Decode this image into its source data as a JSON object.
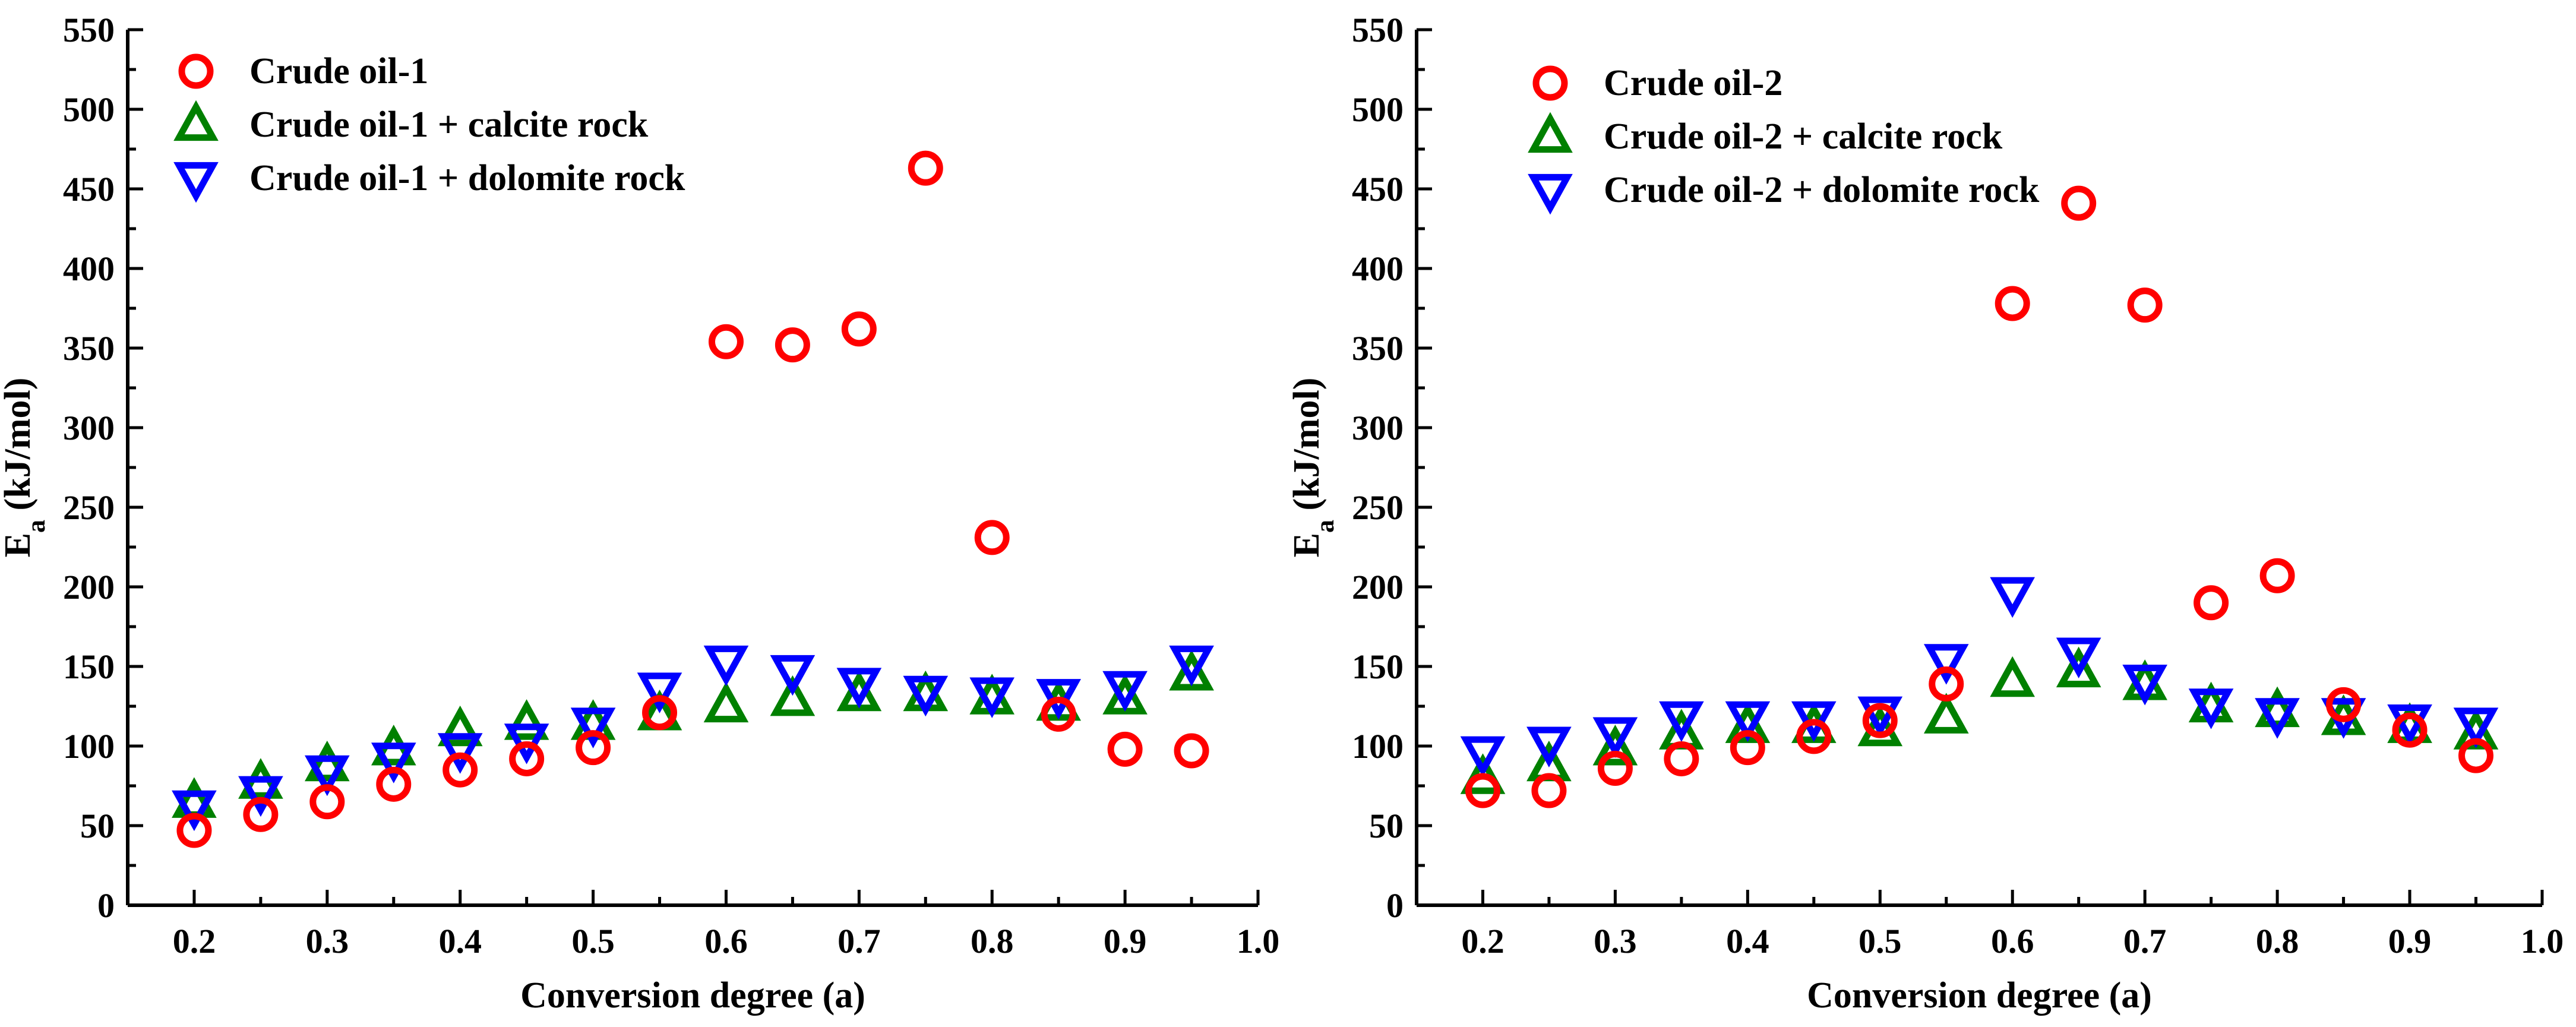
{
  "chart_data": [
    {
      "type": "scatter",
      "title": "",
      "xlabel": "Conversion degree (a)",
      "ylabel": "E",
      "ylabel_sub": "a",
      "ylabel_unit": " (kJ/mol)",
      "xlim": [
        0.15,
        1.0
      ],
      "ylim": [
        0,
        550
      ],
      "xticks": [
        0.2,
        0.3,
        0.4,
        0.5,
        0.6,
        0.7,
        0.8,
        0.9,
        1.0
      ],
      "xtick_labels": [
        "0.2",
        "0.3",
        "0.4",
        "0.5",
        "0.6",
        "0.7",
        "0.8",
        "0.9",
        "1.0"
      ],
      "yticks": [
        0,
        50,
        100,
        150,
        200,
        250,
        300,
        350,
        400,
        450,
        500,
        550
      ],
      "ytick_labels": [
        "0",
        "50",
        "100",
        "150",
        "200",
        "250",
        "300",
        "350",
        "400",
        "450",
        "500",
        "550"
      ],
      "legend_position": "top-left",
      "x": [
        0.2,
        0.25,
        0.3,
        0.35,
        0.4,
        0.45,
        0.5,
        0.55,
        0.6,
        0.65,
        0.7,
        0.75,
        0.8,
        0.85,
        0.9,
        0.95
      ],
      "series": [
        {
          "name": "Crude oil-1",
          "marker": "circle",
          "color": "#ff0000",
          "values": [
            47,
            57,
            65,
            76,
            85,
            92,
            99,
            121,
            354,
            352,
            362,
            463,
            231,
            120,
            98,
            97
          ]
        },
        {
          "name": "Crude oil-1 + calcite rock",
          "marker": "triangle-up",
          "color": "#008000",
          "values": [
            65,
            77,
            88,
            98,
            110,
            114,
            114,
            120,
            125,
            129,
            132,
            132,
            130,
            126,
            130,
            145
          ]
        },
        {
          "name": "Crude oil-1 + dolomite rock",
          "marker": "triangle-down",
          "color": "#0000ff",
          "values": [
            62,
            71,
            84,
            92,
            98,
            104,
            114,
            136,
            153,
            147,
            139,
            134,
            133,
            132,
            137,
            153
          ]
        }
      ]
    },
    {
      "type": "scatter",
      "title": "",
      "xlabel": "Conversion degree (a)",
      "ylabel": "E",
      "ylabel_sub": "a",
      "ylabel_unit": " (kJ/mol)",
      "xlim": [
        0.15,
        1.0
      ],
      "ylim": [
        0,
        550
      ],
      "xticks": [
        0.2,
        0.3,
        0.4,
        0.5,
        0.6,
        0.7,
        0.8,
        0.9,
        1.0
      ],
      "xtick_labels": [
        "0.2",
        "0.3",
        "0.4",
        "0.5",
        "0.6",
        "0.7",
        "0.8",
        "0.9",
        "1.0"
      ],
      "yticks": [
        0,
        50,
        100,
        150,
        200,
        250,
        300,
        350,
        400,
        450,
        500,
        550
      ],
      "ytick_labels": [
        "0",
        "50",
        "100",
        "150",
        "200",
        "250",
        "300",
        "350",
        "400",
        "450",
        "500",
        "550"
      ],
      "legend_position": "top-left",
      "x": [
        0.2,
        0.25,
        0.3,
        0.35,
        0.4,
        0.45,
        0.5,
        0.55,
        0.6,
        0.65,
        0.7,
        0.75,
        0.8,
        0.85,
        0.9,
        0.95
      ],
      "series": [
        {
          "name": "Crude oil-2",
          "marker": "circle",
          "color": "#ff0000",
          "values": [
            72,
            72,
            86,
            92,
            99,
            106,
            116,
            139,
            378,
            441,
            377,
            190,
            207,
            126,
            110,
            94
          ]
        },
        {
          "name": "Crude oil-2 + calcite rock",
          "marker": "triangle-up",
          "color": "#008000",
          "values": [
            80,
            88,
            98,
            108,
            112,
            112,
            110,
            118,
            141,
            147,
            139,
            125,
            122,
            117,
            112,
            108
          ]
        },
        {
          "name": "Crude oil-2 + dolomite rock",
          "marker": "triangle-down",
          "color": "#0000ff",
          "values": [
            96,
            102,
            108,
            118,
            118,
            118,
            121,
            154,
            196,
            158,
            141,
            126,
            120,
            120,
            116,
            114
          ]
        }
      ]
    }
  ]
}
